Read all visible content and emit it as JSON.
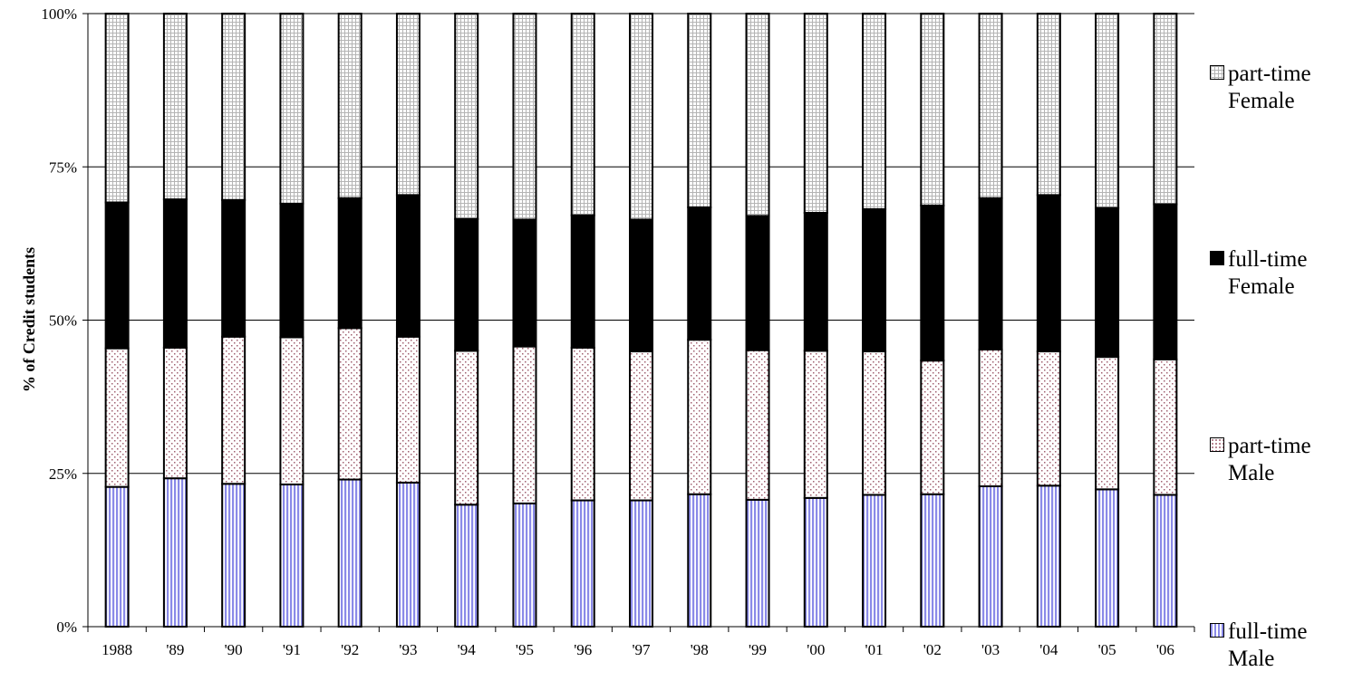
{
  "chart_data": {
    "type": "bar",
    "stacked": true,
    "categories": [
      "1988",
      "'89",
      "'90",
      "'91",
      "'92",
      "'93",
      "'94",
      "'95",
      "'96",
      "'97",
      "'98",
      "'99",
      "'00",
      "'01",
      "'02",
      "'03",
      "'04",
      "'05",
      "'06"
    ],
    "series": [
      {
        "name": "full-time Male",
        "pattern": "vertical-stripes",
        "color": "#8a8ae8",
        "values": [
          22.8,
          24.2,
          23.3,
          23.2,
          24.0,
          23.5,
          19.9,
          20.1,
          20.6,
          20.6,
          21.6,
          20.7,
          21.0,
          21.5,
          21.6,
          22.9,
          23.0,
          22.4,
          21.5
        ]
      },
      {
        "name": "part-time Male",
        "pattern": "dots",
        "color": "#a06070",
        "values": [
          22.6,
          21.3,
          24.0,
          24.0,
          24.7,
          23.8,
          25.1,
          25.6,
          24.9,
          24.3,
          25.2,
          24.4,
          24.0,
          23.4,
          21.8,
          22.3,
          21.9,
          21.6,
          22.1
        ]
      },
      {
        "name": "full-time Female",
        "pattern": "solid",
        "color": "#000000",
        "values": [
          23.8,
          24.2,
          22.3,
          21.8,
          21.2,
          23.1,
          21.5,
          20.7,
          21.6,
          21.5,
          21.6,
          21.9,
          22.5,
          23.2,
          25.3,
          24.7,
          25.5,
          24.3,
          25.3
        ]
      },
      {
        "name": "part-time Female",
        "pattern": "grid",
        "color": "#b4b4b4",
        "values": [
          30.8,
          30.3,
          30.4,
          31.0,
          30.1,
          29.6,
          33.5,
          33.6,
          32.9,
          33.6,
          31.6,
          33.0,
          32.5,
          31.9,
          31.3,
          30.1,
          29.6,
          31.7,
          31.1
        ]
      }
    ],
    "ylabel": "% of Credit students",
    "xlabel": "",
    "ylim": [
      0,
      100
    ],
    "yticks": [
      "0%",
      "25%",
      "50%",
      "75%",
      "100%"
    ],
    "ytick_values": [
      0,
      25,
      50,
      75,
      100
    ],
    "grid": true,
    "legend_position": "right",
    "legend_order": [
      "part-time Female",
      "full-time Female",
      "part-time Male",
      "full-time Male"
    ]
  }
}
